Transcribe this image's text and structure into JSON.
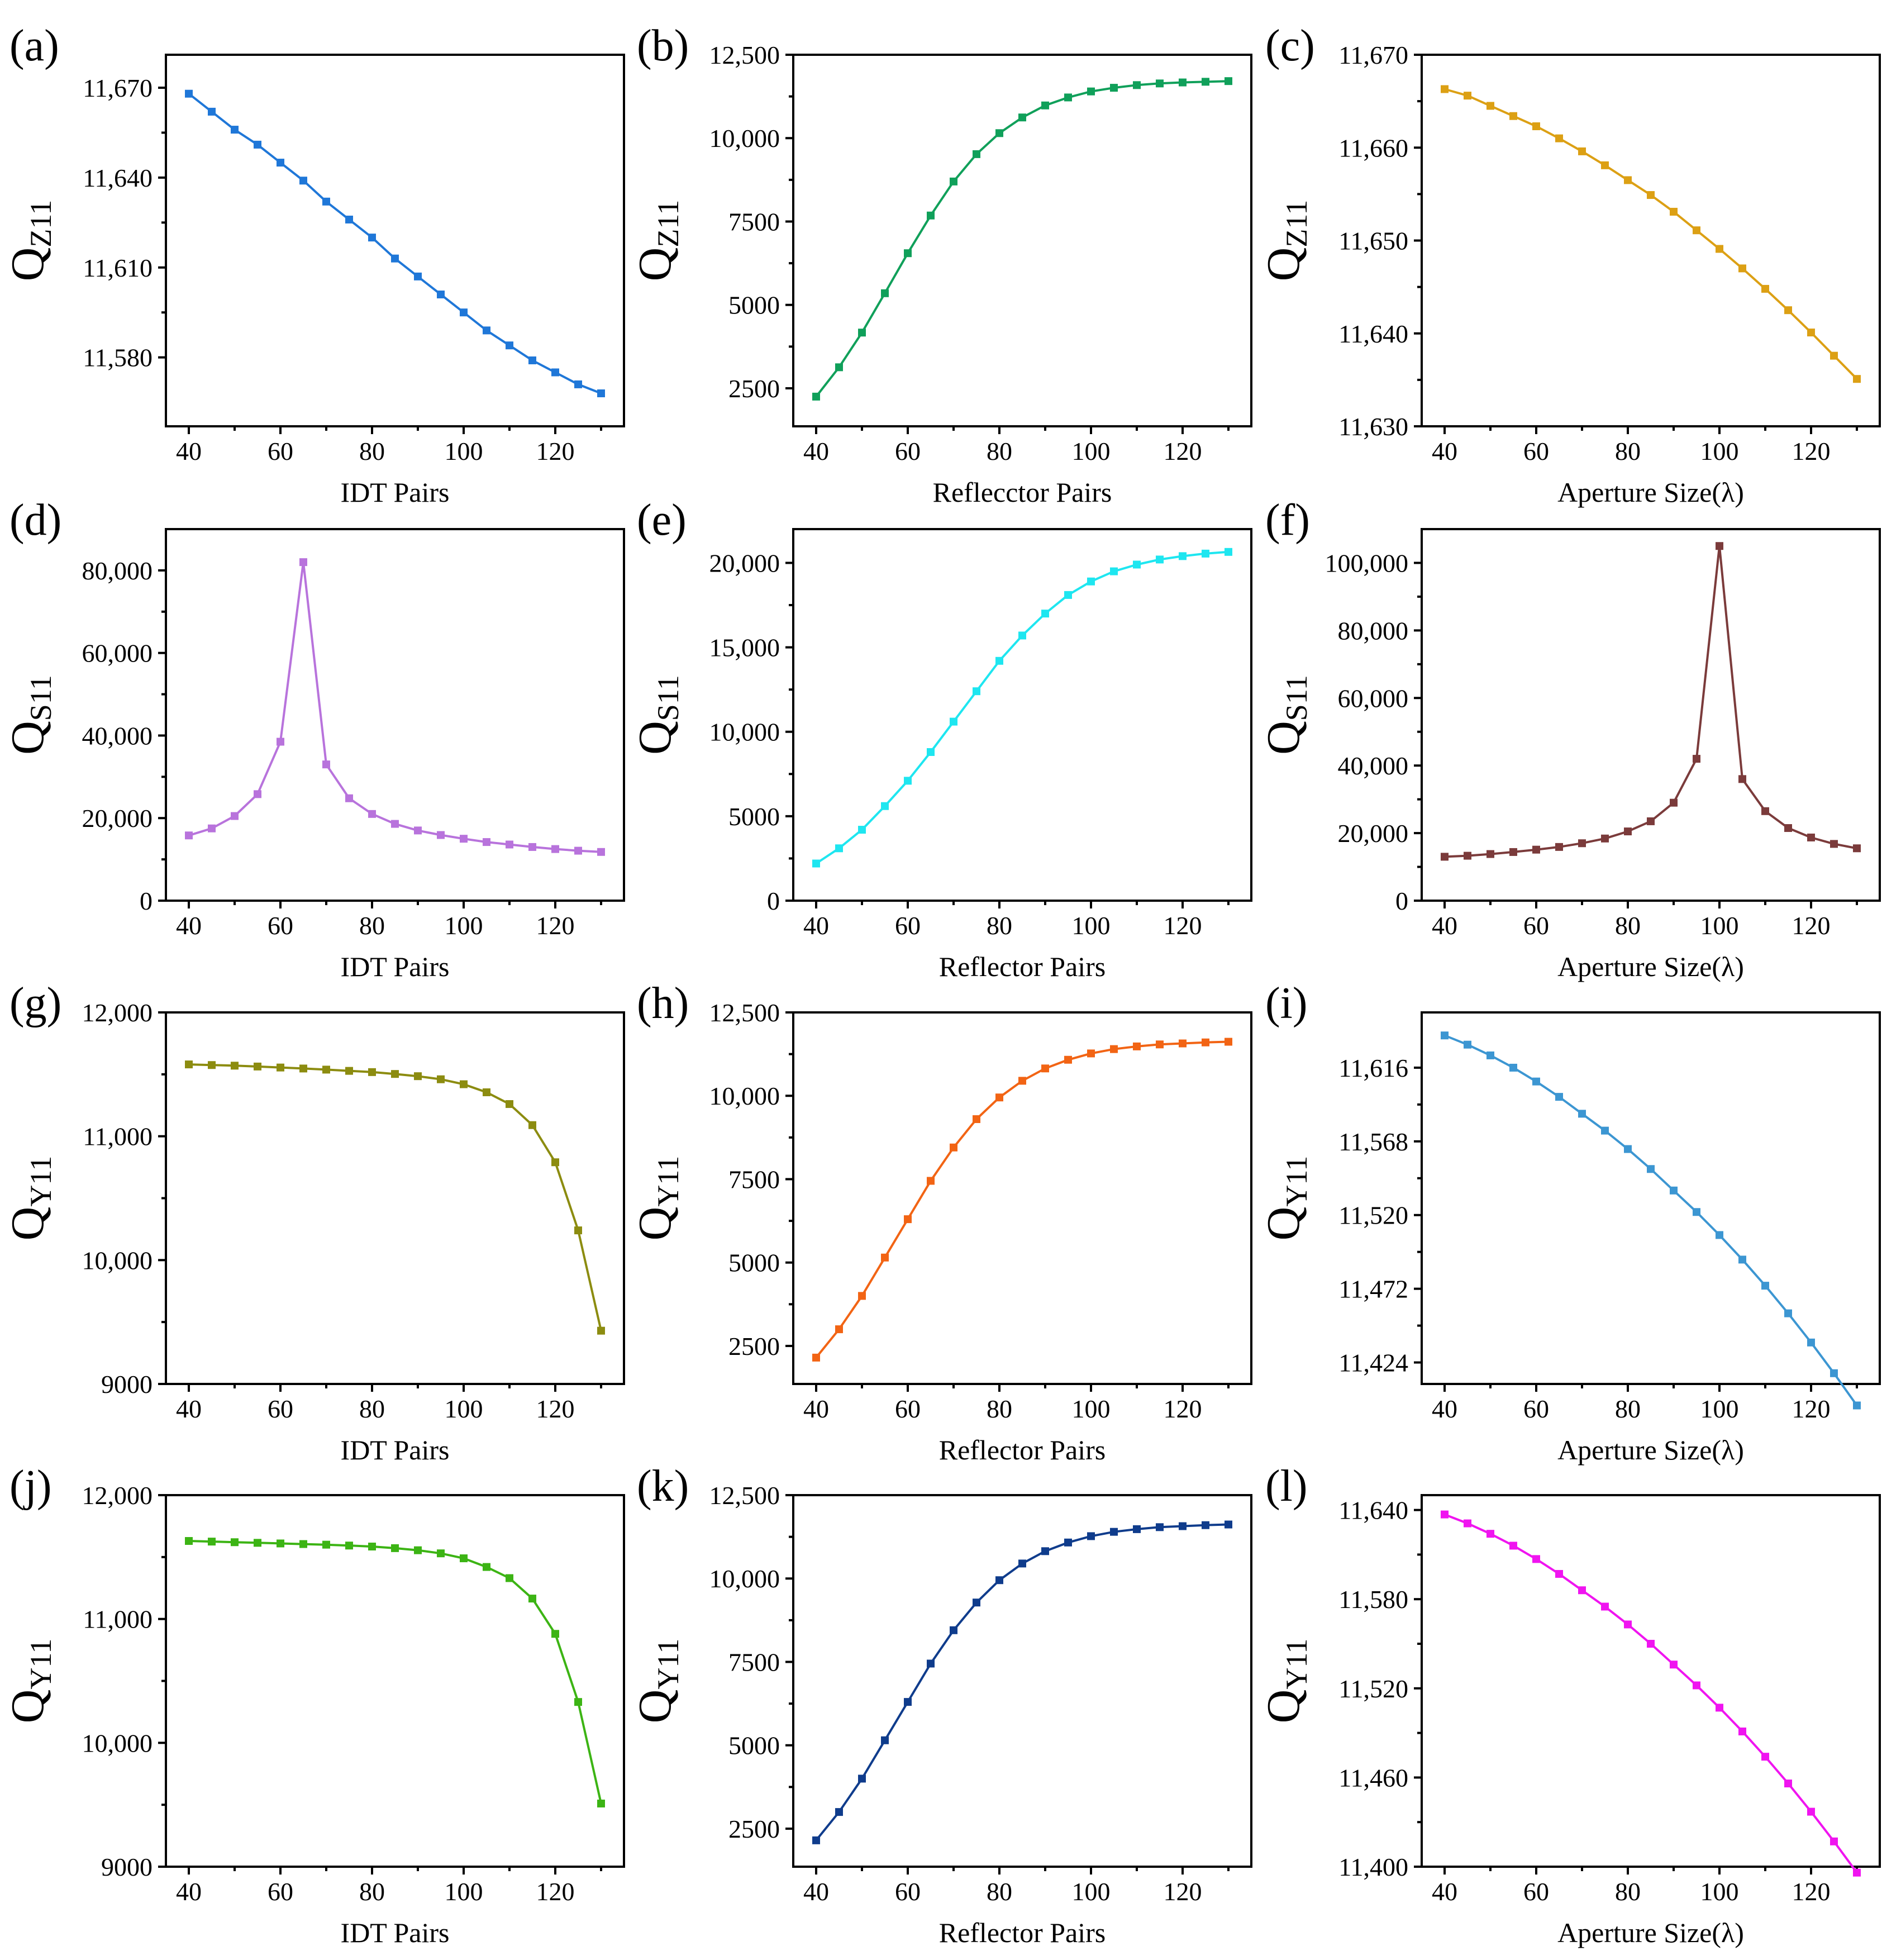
{
  "chart_data": [
    {
      "panel": "(a)",
      "type": "line",
      "xlabel": "IDT Pairs",
      "ylabel_main": "Q",
      "ylabel_sub": "Z11",
      "color": "#1f77d8",
      "xlim": [
        35,
        135
      ],
      "ylim": [
        11557,
        11681
      ],
      "xticks": [
        40,
        60,
        80,
        100,
        120
      ],
      "yticks": [
        11580,
        11610,
        11640,
        11670
      ],
      "yticklabels": [
        "11,580",
        "11,610",
        "11,640",
        "11,670"
      ],
      "x": [
        40,
        45,
        50,
        55,
        60,
        65,
        70,
        75,
        80,
        85,
        90,
        95,
        100,
        105,
        110,
        115,
        120,
        125,
        130
      ],
      "y": [
        11668,
        11662,
        11656,
        11651,
        11645,
        11639,
        11632,
        11626,
        11620,
        11613,
        11607,
        11601,
        11595,
        11589,
        11584,
        11579,
        11575,
        11571,
        11568
      ]
    },
    {
      "panel": "(b)",
      "type": "line",
      "xlabel": "Reflecctor Pairs",
      "ylabel_main": "Q",
      "ylabel_sub": "Z11",
      "color": "#10a05a",
      "xlim": [
        35,
        135
      ],
      "ylim": [
        1360,
        12500
      ],
      "xticks": [
        40,
        60,
        80,
        100,
        120
      ],
      "yticks": [
        2500,
        5000,
        7500,
        10000,
        12500
      ],
      "yticklabels": [
        "2500",
        "5000",
        "7500",
        "10,000",
        "12,500"
      ],
      "x": [
        40,
        45,
        50,
        55,
        60,
        65,
        70,
        75,
        80,
        85,
        90,
        95,
        100,
        105,
        110,
        115,
        120,
        125,
        130
      ],
      "y": [
        2250,
        3130,
        4170,
        5350,
        6550,
        7680,
        8700,
        9520,
        10150,
        10620,
        10980,
        11220,
        11400,
        11510,
        11590,
        11640,
        11670,
        11690,
        11710
      ]
    },
    {
      "panel": "(c)",
      "type": "line",
      "xlabel": "Aperture Size(λ)",
      "ylabel_main": "Q",
      "ylabel_sub": "Z11",
      "color": "#dca014",
      "xlim": [
        35,
        135
      ],
      "ylim": [
        11630,
        11670
      ],
      "xticks": [
        40,
        60,
        80,
        100,
        120
      ],
      "yticks": [
        11630,
        11640,
        11650,
        11660,
        11670
      ],
      "yticklabels": [
        "11,630",
        "11,640",
        "11,650",
        "11,660",
        "11,670"
      ],
      "x": [
        40,
        45,
        50,
        55,
        60,
        65,
        70,
        75,
        80,
        85,
        90,
        95,
        100,
        105,
        110,
        115,
        120,
        125,
        130
      ],
      "y": [
        11666.3,
        11665.6,
        11664.5,
        11663.4,
        11662.3,
        11661.0,
        11659.6,
        11658.1,
        11656.5,
        11654.9,
        11653.1,
        11651.1,
        11649.1,
        11647.0,
        11644.8,
        11642.5,
        11640.1,
        11637.6,
        11635.1
      ]
    },
    {
      "panel": "(d)",
      "type": "line",
      "xlabel": "IDT Pairs",
      "ylabel_main": "Q",
      "ylabel_sub": "S11",
      "color": "#b873dc",
      "xlim": [
        35,
        135
      ],
      "ylim": [
        0,
        90000
      ],
      "xticks": [
        40,
        60,
        80,
        100,
        120
      ],
      "yticks": [
        0,
        20000,
        40000,
        60000,
        80000
      ],
      "yticklabels": [
        "0",
        "20,000",
        "40,000",
        "60,000",
        "80,000"
      ],
      "x": [
        40,
        45,
        50,
        55,
        60,
        65,
        70,
        75,
        80,
        85,
        90,
        95,
        100,
        105,
        110,
        115,
        120,
        125,
        130
      ],
      "y": [
        15800,
        17500,
        20500,
        25800,
        38500,
        82000,
        33000,
        24800,
        21000,
        18600,
        17000,
        15900,
        15000,
        14200,
        13600,
        13000,
        12500,
        12100,
        11800
      ]
    },
    {
      "panel": "(e)",
      "type": "line",
      "xlabel": "Reflector Pairs",
      "ylabel_main": "Q",
      "ylabel_sub": "S11",
      "color": "#1ee6f0",
      "xlim": [
        35,
        135
      ],
      "ylim": [
        0,
        22000
      ],
      "xticks": [
        40,
        60,
        80,
        100,
        120
      ],
      "yticks": [
        0,
        5000,
        10000,
        15000,
        20000
      ],
      "yticklabels": [
        "0",
        "5000",
        "10,000",
        "15,000",
        "20,000"
      ],
      "x": [
        40,
        45,
        50,
        55,
        60,
        65,
        70,
        75,
        80,
        85,
        90,
        95,
        100,
        105,
        110,
        115,
        120,
        125,
        130
      ],
      "y": [
        2200,
        3100,
        4200,
        5600,
        7100,
        8800,
        10600,
        12400,
        14200,
        15700,
        17000,
        18100,
        18900,
        19500,
        19900,
        20200,
        20400,
        20550,
        20650
      ]
    },
    {
      "panel": "(f)",
      "type": "line",
      "xlabel": "Aperture Size(λ)",
      "ylabel_main": "Q",
      "ylabel_sub": "S11",
      "color": "#7b3b3b",
      "xlim": [
        35,
        135
      ],
      "ylim": [
        0,
        110000
      ],
      "xticks": [
        40,
        60,
        80,
        100,
        120
      ],
      "yticks": [
        0,
        20000,
        40000,
        60000,
        80000,
        100000
      ],
      "yticklabels": [
        "0",
        "20,000",
        "40,000",
        "60,000",
        "80,000",
        "100,000"
      ],
      "x": [
        40,
        45,
        50,
        55,
        60,
        65,
        70,
        75,
        80,
        85,
        90,
        95,
        100,
        105,
        110,
        115,
        120,
        125,
        130
      ],
      "y": [
        13000,
        13300,
        13800,
        14400,
        15100,
        15900,
        17000,
        18400,
        20500,
        23500,
        29000,
        42000,
        105000,
        36000,
        26500,
        21500,
        18700,
        16800,
        15500
      ]
    },
    {
      "panel": "(g)",
      "type": "line",
      "xlabel": "IDT Pairs",
      "ylabel_main": "Q",
      "ylabel_sub": "Y11",
      "color": "#8c8c10",
      "xlim": [
        35,
        135
      ],
      "ylim": [
        9000,
        12000
      ],
      "xticks": [
        40,
        60,
        80,
        100,
        120
      ],
      "yticks": [
        9000,
        10000,
        11000,
        12000
      ],
      "yticklabels": [
        "9000",
        "10,000",
        "11,000",
        "12,000"
      ],
      "x": [
        40,
        45,
        50,
        55,
        60,
        65,
        70,
        75,
        80,
        85,
        90,
        95,
        100,
        105,
        110,
        115,
        120,
        125,
        130
      ],
      "y": [
        11580,
        11575,
        11570,
        11563,
        11555,
        11547,
        11538,
        11528,
        11518,
        11503,
        11485,
        11460,
        11420,
        11355,
        11260,
        11090,
        10790,
        10240,
        9430
      ]
    },
    {
      "panel": "(h)",
      "type": "line",
      "xlabel": "Reflector Pairs",
      "ylabel_main": "Q",
      "ylabel_sub": "Y11",
      "color": "#f26414",
      "xlim": [
        35,
        135
      ],
      "ylim": [
        1360,
        12500
      ],
      "xticks": [
        40,
        60,
        80,
        100,
        120
      ],
      "yticks": [
        2500,
        5000,
        7500,
        10000,
        12500
      ],
      "yticklabels": [
        "2500",
        "5000",
        "7500",
        "10,000",
        "12,500"
      ],
      "x": [
        40,
        45,
        50,
        55,
        60,
        65,
        70,
        75,
        80,
        85,
        90,
        95,
        100,
        105,
        110,
        115,
        120,
        125,
        130
      ],
      "y": [
        2150,
        3000,
        4000,
        5150,
        6300,
        7450,
        8450,
        9300,
        9950,
        10450,
        10820,
        11080,
        11270,
        11400,
        11480,
        11540,
        11570,
        11600,
        11620
      ]
    },
    {
      "panel": "(i)",
      "type": "line",
      "xlabel": "Aperture Size(λ)",
      "ylabel_main": "Q",
      "ylabel_sub": "Y11",
      "color": "#3c96d2",
      "xlim": [
        35,
        135
      ],
      "ylim": [
        11410,
        11652
      ],
      "xticks": [
        40,
        60,
        80,
        100,
        120
      ],
      "yticks": [
        11424,
        11472,
        11520,
        11568,
        11616
      ],
      "yticklabels": [
        "11,424",
        "11,472",
        "11,520",
        "11,568",
        "11,616"
      ],
      "x": [
        40,
        45,
        50,
        55,
        60,
        65,
        70,
        75,
        80,
        85,
        90,
        95,
        100,
        105,
        110,
        115,
        120,
        125,
        130
      ],
      "y": [
        11637,
        11631,
        11624,
        11616,
        11607,
        11597,
        11586,
        11575,
        11563,
        11550,
        11536,
        11522,
        11507,
        11491,
        11474,
        11456,
        11437,
        11417,
        11396
      ]
    },
    {
      "panel": "(j)",
      "type": "line",
      "xlabel": "IDT Pairs",
      "ylabel_main": "Q",
      "ylabel_sub": "Y11",
      "color": "#3cb414",
      "xlim": [
        35,
        135
      ],
      "ylim": [
        9000,
        12000
      ],
      "xticks": [
        40,
        60,
        80,
        100,
        120
      ],
      "yticks": [
        9000,
        10000,
        11000,
        12000
      ],
      "yticklabels": [
        "9000",
        "10,000",
        "11,000",
        "12,000"
      ],
      "x": [
        40,
        45,
        50,
        55,
        60,
        65,
        70,
        75,
        80,
        85,
        90,
        95,
        100,
        105,
        110,
        115,
        120,
        125,
        130
      ],
      "y": [
        11630,
        11625,
        11620,
        11615,
        11610,
        11605,
        11600,
        11593,
        11585,
        11572,
        11555,
        11530,
        11490,
        11420,
        11330,
        11165,
        10880,
        10330,
        9510
      ]
    },
    {
      "panel": "(k)",
      "type": "line",
      "xlabel": "Reflector Pairs",
      "ylabel_main": "Q",
      "ylabel_sub": "Y11",
      "color": "#0f3c8c",
      "xlim": [
        35,
        135
      ],
      "ylim": [
        1360,
        12500
      ],
      "xticks": [
        40,
        60,
        80,
        100,
        120
      ],
      "yticks": [
        2500,
        5000,
        7500,
        10000,
        12500
      ],
      "yticklabels": [
        "2500",
        "5000",
        "7500",
        "10,000",
        "12,500"
      ],
      "x": [
        40,
        45,
        50,
        55,
        60,
        65,
        70,
        75,
        80,
        85,
        90,
        95,
        100,
        105,
        110,
        115,
        120,
        125,
        130
      ],
      "y": [
        2150,
        3000,
        4000,
        5150,
        6300,
        7450,
        8450,
        9280,
        9950,
        10450,
        10820,
        11080,
        11270,
        11400,
        11480,
        11540,
        11570,
        11600,
        11620
      ]
    },
    {
      "panel": "(l)",
      "type": "line",
      "xlabel": "Aperture Size(λ)",
      "ylabel_main": "Q",
      "ylabel_sub": "Y11",
      "color": "#f014f0",
      "xlim": [
        35,
        135
      ],
      "ylim": [
        11400,
        11650
      ],
      "xticks": [
        40,
        60,
        80,
        100,
        120
      ],
      "yticks": [
        11400,
        11460,
        11520,
        11580,
        11640
      ],
      "yticklabels": [
        "11,400",
        "11,460",
        "11,520",
        "11,580",
        "11,640"
      ],
      "x": [
        40,
        45,
        50,
        55,
        60,
        65,
        70,
        75,
        80,
        85,
        90,
        95,
        100,
        105,
        110,
        115,
        120,
        125,
        130
      ],
      "y": [
        11637,
        11631,
        11624,
        11616,
        11607,
        11597,
        11586,
        11575,
        11563,
        11550,
        11536,
        11522,
        11507,
        11491,
        11474,
        11456,
        11437,
        11417,
        11396
      ]
    }
  ]
}
